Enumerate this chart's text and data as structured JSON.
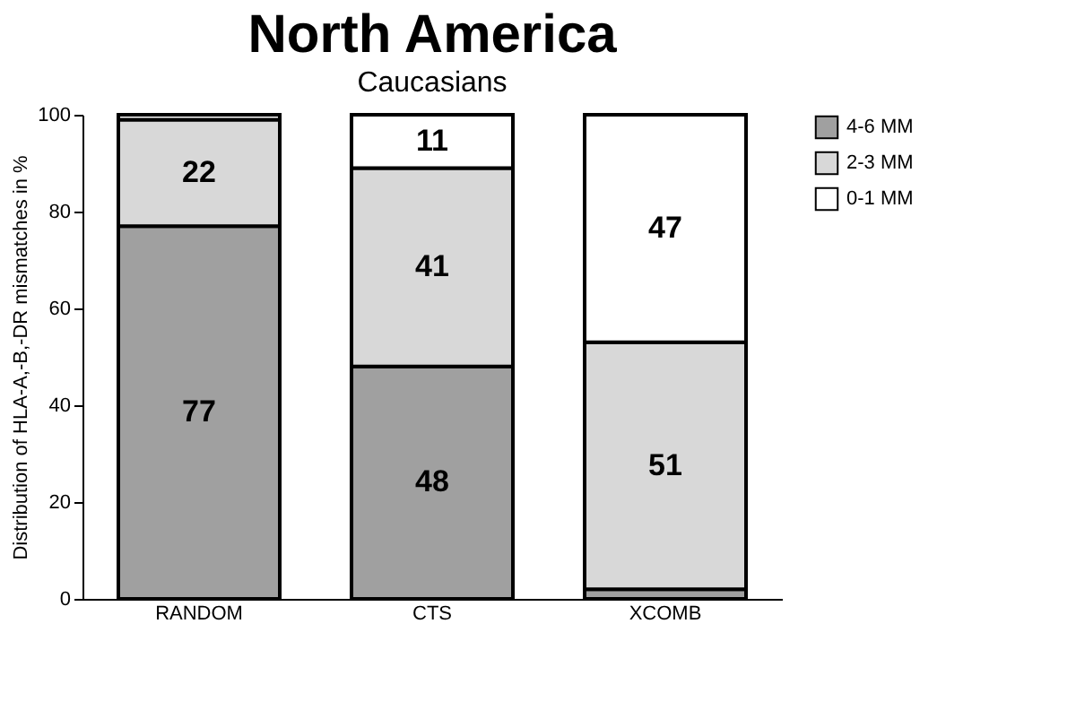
{
  "chart_data": {
    "type": "bar",
    "title": "North America",
    "subtitle": "Caucasians",
    "ylabel": "Distribution of HLA-A,-B,-DR mismatches in %",
    "categories": [
      "RANDOM",
      "CTS",
      "XCOMB"
    ],
    "stacked": true,
    "ylim": [
      0,
      100
    ],
    "yticks": [
      0,
      20,
      40,
      60,
      80,
      100
    ],
    "grid": false,
    "legend": "right",
    "series": [
      {
        "name": "4-6 MM",
        "color": "#a0a0a0",
        "values": [
          77,
          48,
          2
        ],
        "value_labels": [
          "77",
          "48",
          null
        ]
      },
      {
        "name": "2-3 MM",
        "color": "#d8d8d8",
        "values": [
          22,
          41,
          51
        ],
        "value_labels": [
          "22",
          "41",
          "51"
        ]
      },
      {
        "name": "0-1 MM",
        "color": "#ffffff",
        "values": [
          1,
          11,
          47
        ],
        "value_labels": [
          null,
          "11",
          "47"
        ]
      }
    ]
  }
}
